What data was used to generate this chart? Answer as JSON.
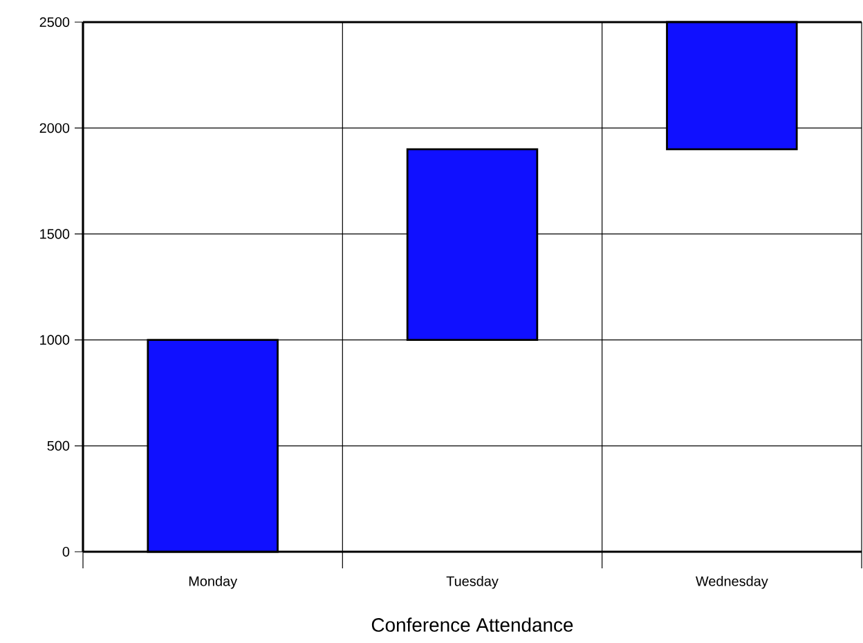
{
  "chart_data": {
    "type": "bar",
    "xlabel": "Conference Attendance",
    "categories": [
      "Monday",
      "Tuesday",
      "Wednesday"
    ],
    "values": [
      1000,
      900,
      600
    ],
    "base": [
      0,
      1000,
      1900
    ],
    "color": "#1010ff",
    "ylim": [
      0,
      2500
    ],
    "yticks": [
      0,
      500,
      1000,
      1500,
      2000,
      2500
    ],
    "grid": true
  }
}
